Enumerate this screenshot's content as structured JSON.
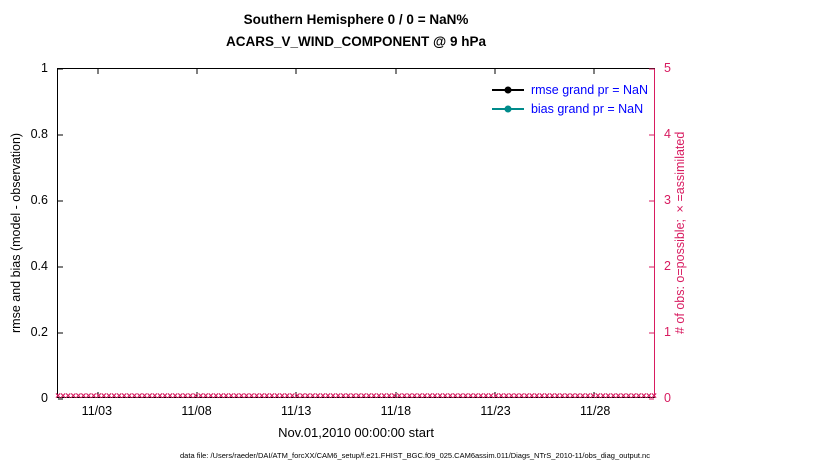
{
  "titles": {
    "line1": "Southern Hemisphere 0 / 0 = NaN%",
    "line2": "ACARS_V_WIND_COMPONENT @ 9 hPa"
  },
  "axes": {
    "x": {
      "label": "Nov.01,2010 00:00:00 start",
      "range_days": [
        0,
        30
      ],
      "ticks": [
        {
          "value": 2,
          "label": "11/03"
        },
        {
          "value": 7,
          "label": "11/08"
        },
        {
          "value": 12,
          "label": "11/13"
        },
        {
          "value": 17,
          "label": "11/18"
        },
        {
          "value": 22,
          "label": "11/23"
        },
        {
          "value": 27,
          "label": "11/28"
        }
      ]
    },
    "y_left": {
      "label": "rmse and bias (model - observation)",
      "range": [
        0,
        1
      ],
      "ticks": [
        {
          "value": 0,
          "label": "0"
        },
        {
          "value": 0.2,
          "label": "0.2"
        },
        {
          "value": 0.4,
          "label": "0.4"
        },
        {
          "value": 0.6,
          "label": "0.6"
        },
        {
          "value": 0.8,
          "label": "0.8"
        },
        {
          "value": 1,
          "label": "1"
        }
      ]
    },
    "y_right": {
      "label": "# of obs: o=possible; ×=assimilated",
      "range": [
        0,
        5
      ],
      "ticks": [
        {
          "value": 0,
          "label": "0"
        },
        {
          "value": 1,
          "label": "1"
        },
        {
          "value": 2,
          "label": "2"
        },
        {
          "value": 3,
          "label": "3"
        },
        {
          "value": 4,
          "label": "4"
        },
        {
          "value": 5,
          "label": "5"
        }
      ],
      "color": "#D81B60"
    }
  },
  "legend": {
    "text_color": "#0000FF",
    "items": [
      {
        "label": "rmse grand pr = NaN",
        "color": "#000000"
      },
      {
        "label": "bias grand pr = NaN",
        "color": "#008B8B"
      }
    ]
  },
  "footer": "data file: /Users/raeder/DAI/ATM_forcXX/CAM6_setup/f.e21.FHIST_BGC.f09_025.CAM6assim.011/Diags_NTrS_2010-11/obs_diag_output.nc",
  "chart_data": {
    "type": "line",
    "title": "Southern Hemisphere 0 / 0 = NaN%",
    "subtitle": "ACARS_V_WIND_COMPONENT @ 9 hPa",
    "xlabel": "Nov.01,2010 00:00:00 start",
    "ylabel_left": "rmse and bias (model - observation)",
    "ylabel_right": "# of obs: o=possible; ×=assimilated",
    "x_tick_labels": [
      "11/03",
      "11/08",
      "11/13",
      "11/18",
      "11/23",
      "11/28"
    ],
    "xlim_days": [
      0,
      30
    ],
    "ylim_left": [
      0,
      1
    ],
    "ylim_right": [
      0,
      5
    ],
    "grid": false,
    "legend_position": "upper-right-inside-no-box",
    "series": [
      {
        "name": "rmse grand pr",
        "axis": "left",
        "grand_value": "NaN",
        "values": []
      },
      {
        "name": "bias grand pr",
        "axis": "left",
        "grand_value": "NaN",
        "values": []
      }
    ],
    "obs_counts": {
      "axis": "right",
      "marker": "×",
      "value_at_all_times": 0,
      "marker_count": 118,
      "color": "#D81B60"
    }
  }
}
